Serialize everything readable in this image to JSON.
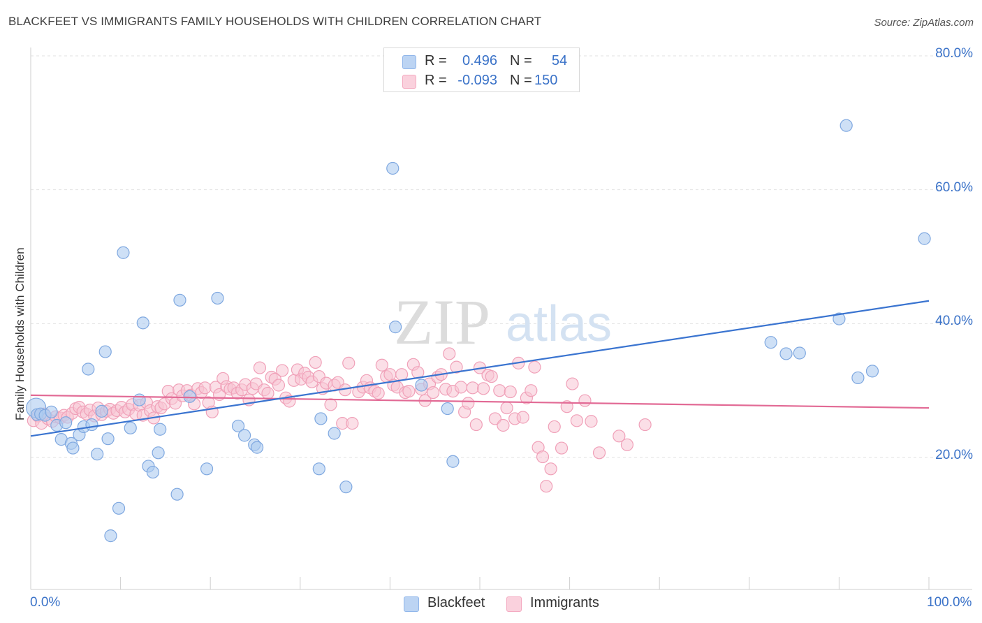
{
  "title": "BLACKFEET VS IMMIGRANTS FAMILY HOUSEHOLDS WITH CHILDREN CORRELATION CHART",
  "source": "Source: ZipAtlas.com",
  "watermark": {
    "zip": "ZIP",
    "atlas": "atlas"
  },
  "legend": {
    "rows": [
      {
        "r_label": "R =",
        "r_value": "0.496",
        "n_label": "N =",
        "n_value": "54",
        "color": "#8fb5ea"
      },
      {
        "r_label": "R =",
        "r_value": "-0.093",
        "n_label": "N =",
        "n_value": "150",
        "color": "#f4a9c0"
      }
    ]
  },
  "colors": {
    "blackfeet_fill": "#aecbf0",
    "blackfeet_stroke": "#7fa8e0",
    "blackfeet_line": "#3a74d0",
    "immigrants_fill": "#f8c5d4",
    "immigrants_stroke": "#f0a0b8",
    "immigrants_line": "#e26a95",
    "tick": "#3a72c8"
  },
  "chart_data": {
    "type": "scatter",
    "title": "BLACKFEET VS IMMIGRANTS FAMILY HOUSEHOLDS WITH CHILDREN CORRELATION CHART",
    "xlabel": "",
    "ylabel": "Family Households with Children",
    "xlim": [
      0,
      100
    ],
    "ylim": [
      0,
      85
    ],
    "x_tick_labels": [
      "0.0%",
      "100.0%"
    ],
    "y_ticks": [
      20,
      40,
      60,
      80
    ],
    "y_tick_labels": [
      "20.0%",
      "40.0%",
      "60.0%",
      "80.0%"
    ],
    "grid": true,
    "legend_position": "top-center",
    "series": [
      {
        "name": "Blackfeet",
        "r": 0.496,
        "n": 54,
        "trend": {
          "x": [
            0,
            100
          ],
          "y": [
            23.2,
            43.4
          ]
        },
        "points": [
          [
            0.6,
            27.4
          ],
          [
            0.7,
            26.4
          ],
          [
            1.1,
            26.5
          ],
          [
            1.6,
            26.3
          ],
          [
            2.3,
            26.8
          ],
          [
            2.9,
            24.8
          ],
          [
            3.4,
            22.7
          ],
          [
            3.9,
            25.2
          ],
          [
            4.5,
            22.1
          ],
          [
            4.7,
            21.4
          ],
          [
            5.4,
            23.4
          ],
          [
            5.9,
            24.6
          ],
          [
            6.4,
            33.2
          ],
          [
            6.8,
            24.9
          ],
          [
            7.4,
            20.5
          ],
          [
            7.9,
            26.9
          ],
          [
            8.3,
            35.8
          ],
          [
            8.6,
            22.8
          ],
          [
            8.9,
            8.3
          ],
          [
            9.8,
            12.4
          ],
          [
            10.3,
            50.6
          ],
          [
            11.1,
            24.4
          ],
          [
            12.1,
            28.6
          ],
          [
            12.5,
            40.1
          ],
          [
            13.1,
            18.7
          ],
          [
            13.6,
            17.8
          ],
          [
            14.2,
            20.7
          ],
          [
            14.4,
            24.2
          ],
          [
            16.3,
            14.5
          ],
          [
            16.6,
            43.5
          ],
          [
            17.7,
            29.1
          ],
          [
            19.6,
            18.3
          ],
          [
            20.8,
            43.8
          ],
          [
            23.1,
            24.7
          ],
          [
            23.8,
            23.3
          ],
          [
            24.9,
            21.9
          ],
          [
            25.2,
            21.5
          ],
          [
            32.1,
            18.3
          ],
          [
            32.3,
            25.8
          ],
          [
            33.8,
            23.6
          ],
          [
            35.1,
            15.6
          ],
          [
            40.3,
            63.2
          ],
          [
            40.6,
            39.5
          ],
          [
            43.5,
            30.8
          ],
          [
            46.4,
            27.3
          ],
          [
            47.0,
            19.4
          ],
          [
            82.4,
            37.2
          ],
          [
            84.1,
            35.5
          ],
          [
            85.6,
            35.6
          ],
          [
            90.0,
            40.7
          ],
          [
            90.8,
            69.6
          ],
          [
            92.1,
            31.9
          ],
          [
            93.7,
            32.9
          ],
          [
            99.5,
            52.7
          ]
        ]
      },
      {
        "name": "Immigrants",
        "r": -0.093,
        "n": 150,
        "trend": {
          "x": [
            0,
            100
          ],
          "y": [
            29.3,
            27.4
          ]
        },
        "points": [
          [
            0.3,
            25.5
          ],
          [
            0.8,
            26.2
          ],
          [
            1.2,
            25.1
          ],
          [
            1.5,
            26.5
          ],
          [
            1.9,
            25.8
          ],
          [
            2.4,
            25.4
          ],
          [
            2.8,
            26.1
          ],
          [
            3.3,
            25.9
          ],
          [
            3.7,
            26.3
          ],
          [
            4.1,
            26.0
          ],
          [
            4.6,
            26.6
          ],
          [
            5.0,
            27.3
          ],
          [
            5.4,
            27.5
          ],
          [
            5.8,
            26.8
          ],
          [
            6.2,
            26.5
          ],
          [
            6.6,
            27.1
          ],
          [
            7.1,
            26.2
          ],
          [
            7.5,
            27.4
          ],
          [
            7.9,
            26.4
          ],
          [
            8.4,
            26.9
          ],
          [
            8.8,
            27.2
          ],
          [
            9.2,
            26.6
          ],
          [
            9.6,
            27.0
          ],
          [
            10.1,
            27.5
          ],
          [
            10.5,
            26.8
          ],
          [
            10.9,
            27.2
          ],
          [
            11.3,
            27.9
          ],
          [
            11.7,
            26.5
          ],
          [
            12.1,
            27.8
          ],
          [
            12.5,
            26.3
          ],
          [
            12.9,
            28.2
          ],
          [
            13.3,
            27.0
          ],
          [
            13.7,
            25.9
          ],
          [
            14.1,
            27.6
          ],
          [
            14.5,
            27.4
          ],
          [
            14.9,
            28.0
          ],
          [
            15.3,
            29.9
          ],
          [
            15.7,
            28.8
          ],
          [
            16.1,
            28.1
          ],
          [
            16.5,
            30.1
          ],
          [
            16.9,
            29.2
          ],
          [
            17.4,
            30.0
          ],
          [
            17.8,
            29.3
          ],
          [
            18.2,
            28.0
          ],
          [
            18.6,
            30.3
          ],
          [
            19.0,
            29.7
          ],
          [
            19.4,
            30.4
          ],
          [
            19.8,
            28.2
          ],
          [
            20.2,
            26.8
          ],
          [
            20.6,
            30.5
          ],
          [
            21.0,
            29.4
          ],
          [
            21.4,
            31.8
          ],
          [
            21.8,
            30.6
          ],
          [
            22.2,
            30.2
          ],
          [
            22.6,
            30.4
          ],
          [
            23.0,
            29.6
          ],
          [
            23.5,
            30.1
          ],
          [
            23.9,
            30.9
          ],
          [
            24.3,
            28.6
          ],
          [
            24.7,
            30.3
          ],
          [
            25.1,
            31.0
          ],
          [
            25.5,
            33.4
          ],
          [
            26.0,
            30.1
          ],
          [
            26.4,
            29.6
          ],
          [
            26.8,
            32.0
          ],
          [
            27.2,
            31.7
          ],
          [
            27.6,
            30.8
          ],
          [
            28.0,
            33.0
          ],
          [
            28.4,
            28.9
          ],
          [
            28.8,
            28.4
          ],
          [
            29.3,
            31.5
          ],
          [
            29.7,
            33.1
          ],
          [
            30.1,
            31.7
          ],
          [
            30.5,
            32.6
          ],
          [
            30.9,
            32.0
          ],
          [
            31.3,
            31.3
          ],
          [
            31.7,
            34.2
          ],
          [
            32.1,
            32.1
          ],
          [
            32.5,
            30.3
          ],
          [
            32.9,
            31.1
          ],
          [
            33.4,
            27.9
          ],
          [
            33.8,
            30.8
          ],
          [
            34.2,
            31.2
          ],
          [
            34.7,
            25.1
          ],
          [
            35.0,
            30.1
          ],
          [
            35.4,
            34.1
          ],
          [
            35.8,
            25.1
          ],
          [
            36.5,
            29.8
          ],
          [
            37.0,
            30.5
          ],
          [
            37.4,
            31.5
          ],
          [
            37.8,
            30.4
          ],
          [
            38.3,
            29.9
          ],
          [
            38.7,
            29.6
          ],
          [
            39.1,
            33.8
          ],
          [
            39.6,
            32.1
          ],
          [
            40.0,
            32.4
          ],
          [
            40.4,
            30.8
          ],
          [
            40.8,
            30.5
          ],
          [
            41.3,
            32.4
          ],
          [
            41.7,
            29.7
          ],
          [
            42.1,
            29.9
          ],
          [
            42.6,
            33.9
          ],
          [
            43.1,
            32.7
          ],
          [
            43.5,
            30.2
          ],
          [
            43.9,
            28.5
          ],
          [
            44.4,
            31.0
          ],
          [
            44.8,
            29.7
          ],
          [
            45.3,
            32.0
          ],
          [
            45.7,
            32.4
          ],
          [
            46.2,
            30.2
          ],
          [
            46.6,
            35.5
          ],
          [
            47.0,
            29.9
          ],
          [
            47.4,
            33.5
          ],
          [
            47.9,
            30.5
          ],
          [
            48.3,
            26.8
          ],
          [
            48.7,
            28.1
          ],
          [
            49.2,
            30.4
          ],
          [
            49.6,
            24.9
          ],
          [
            50.0,
            33.4
          ],
          [
            50.4,
            30.3
          ],
          [
            50.9,
            32.3
          ],
          [
            51.3,
            32.1
          ],
          [
            51.7,
            25.8
          ],
          [
            52.2,
            30.0
          ],
          [
            52.6,
            24.8
          ],
          [
            53.0,
            27.4
          ],
          [
            53.4,
            29.8
          ],
          [
            53.9,
            25.8
          ],
          [
            54.3,
            34.1
          ],
          [
            54.8,
            26.0
          ],
          [
            55.2,
            28.9
          ],
          [
            55.7,
            30.0
          ],
          [
            56.1,
            33.5
          ],
          [
            56.5,
            21.5
          ],
          [
            57.0,
            20.1
          ],
          [
            57.4,
            15.7
          ],
          [
            57.9,
            18.3
          ],
          [
            58.3,
            24.6
          ],
          [
            59.1,
            21.4
          ],
          [
            59.7,
            27.6
          ],
          [
            60.3,
            31.0
          ],
          [
            60.8,
            25.5
          ],
          [
            61.7,
            28.5
          ],
          [
            62.4,
            25.4
          ],
          [
            63.3,
            20.7
          ],
          [
            65.5,
            23.2
          ],
          [
            66.4,
            21.9
          ],
          [
            68.4,
            24.9
          ]
        ]
      }
    ]
  },
  "bottom_legend": {
    "items": [
      "Blackfeet",
      "Immigrants"
    ]
  }
}
